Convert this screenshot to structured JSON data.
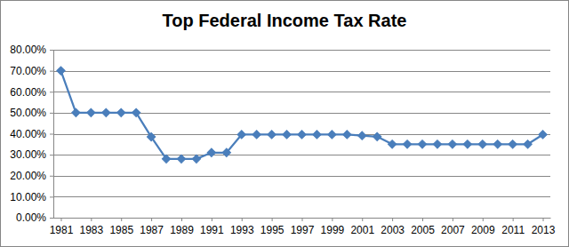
{
  "chart_data": {
    "type": "line",
    "title": "Top Federal Income Tax Rate",
    "x": [
      1981,
      1982,
      1983,
      1984,
      1985,
      1986,
      1987,
      1988,
      1989,
      1990,
      1991,
      1992,
      1993,
      1994,
      1995,
      1996,
      1997,
      1998,
      1999,
      2000,
      2001,
      2002,
      2003,
      2004,
      2005,
      2006,
      2007,
      2008,
      2009,
      2010,
      2011,
      2012,
      2013
    ],
    "values": [
      70,
      50,
      50,
      50,
      50,
      50,
      38.5,
      28,
      28,
      28,
      31,
      31,
      39.6,
      39.6,
      39.6,
      39.6,
      39.6,
      39.6,
      39.6,
      39.6,
      39.1,
      38.6,
      35,
      35,
      35,
      35,
      35,
      35,
      35,
      35,
      35,
      35,
      39.6
    ],
    "color": "#4a7ebb",
    "marker": "diamond",
    "xlim": [
      1980.5,
      2013.5
    ],
    "xticks": [
      1981,
      1983,
      1985,
      1987,
      1989,
      1991,
      1993,
      1995,
      1997,
      1999,
      2001,
      2003,
      2005,
      2007,
      2009,
      2011,
      2013
    ],
    "ylim": [
      0,
      80
    ],
    "yticks": [
      {
        "value": 0,
        "label": "0.00%"
      },
      {
        "value": 10,
        "label": "10.00%"
      },
      {
        "value": 20,
        "label": "20.00%"
      },
      {
        "value": 30,
        "label": "30.00%"
      },
      {
        "value": 40,
        "label": "40.00%"
      },
      {
        "value": 50,
        "label": "50.00%"
      },
      {
        "value": 60,
        "label": "60.00%"
      },
      {
        "value": 70,
        "label": "70.00%"
      },
      {
        "value": 80,
        "label": "80.00%"
      }
    ],
    "grid": true
  }
}
